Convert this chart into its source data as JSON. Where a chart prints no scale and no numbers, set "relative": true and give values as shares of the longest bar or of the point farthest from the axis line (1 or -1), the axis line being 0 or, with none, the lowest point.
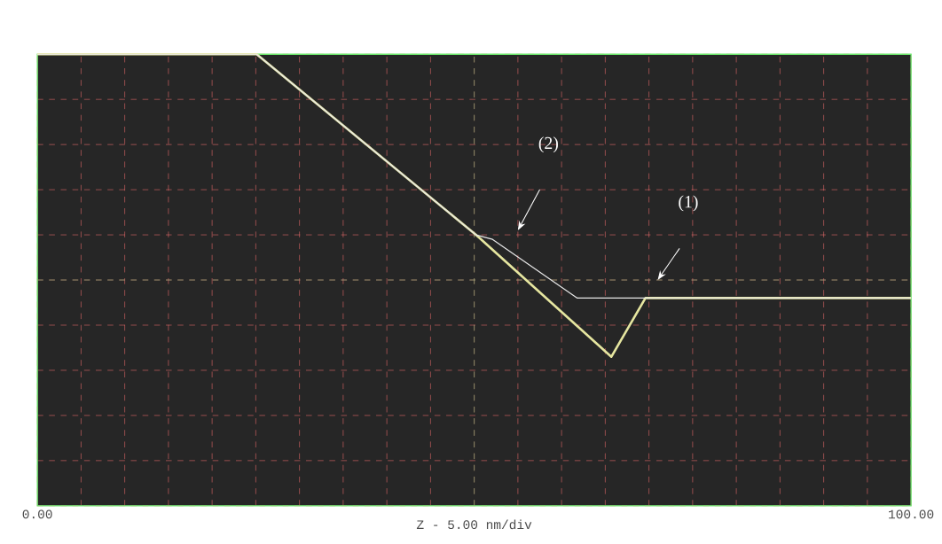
{
  "chart_data": {
    "type": "line",
    "relative": true,
    "xlabel": "Z - 5.00 nm/div",
    "xlim": [
      0,
      100
    ],
    "xticks": [
      {
        "value": 0,
        "label": "0.00"
      },
      {
        "value": 5,
        "label": null
      },
      {
        "value": 10,
        "label": null
      },
      {
        "value": 15,
        "label": null
      },
      {
        "value": 20,
        "label": null
      },
      {
        "value": 25,
        "label": null
      },
      {
        "value": 30,
        "label": null
      },
      {
        "value": 35,
        "label": null
      },
      {
        "value": 40,
        "label": null
      },
      {
        "value": 45,
        "label": null
      },
      {
        "value": 50,
        "label": null
      },
      {
        "value": 55,
        "label": null
      },
      {
        "value": 60,
        "label": null
      },
      {
        "value": 65,
        "label": null
      },
      {
        "value": 70,
        "label": null
      },
      {
        "value": 75,
        "label": null
      },
      {
        "value": 80,
        "label": null
      },
      {
        "value": 85,
        "label": null
      },
      {
        "value": 90,
        "label": null
      },
      {
        "value": 95,
        "label": null
      },
      {
        "value": 100,
        "label": "100.00"
      }
    ],
    "tick_labels": "x",
    "grid": true,
    "marker": "none",
    "line_style": "solid",
    "series": [
      {
        "color": "#e6e6a0",
        "x": [
          0,
          25.1,
          50.2,
          65.7,
          69.6,
          100
        ],
        "values": [
          1,
          1,
          0.6,
          0.33,
          0.46,
          0.46
        ]
      },
      {
        "color": "#e8e8e8",
        "x": [
          0,
          25.1,
          50.2,
          52.1,
          61.8,
          100
        ],
        "values": [
          1,
          1,
          0.6,
          0.59,
          0.46,
          0.46
        ]
      }
    ],
    "ref_lines": [
      {
        "axis": "x",
        "value": 50,
        "color": "#7fbf7f",
        "line_style": "dashed"
      },
      {
        "axis": "y",
        "value": 0.5,
        "color": "#7fbf7f",
        "line_style": "dashed"
      }
    ],
    "annotations": [
      "(1)",
      "(2)"
    ]
  }
}
